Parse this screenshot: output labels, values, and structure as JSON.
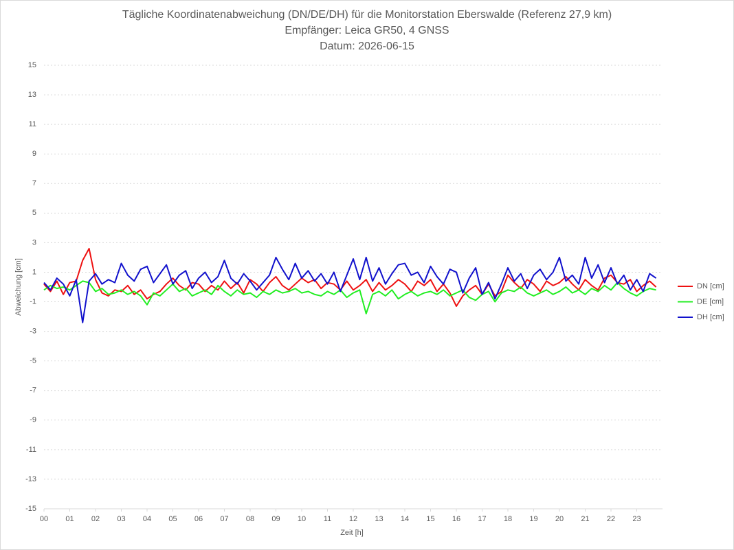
{
  "chart_data": {
    "type": "line",
    "title": "Tägliche Koordinatenabweichung (DN/DE/DH) für die Monitorstation Eberswalde (Referenz 27,9 km)",
    "subtitle": [
      "Empfänger: Leica GR50, 4 GNSS",
      "Datum: 2026-06-15"
    ],
    "x_label": "Zeit [h]",
    "y_label": "Abweichung [cm]",
    "legend": "right",
    "grid": true,
    "xlim": [
      0,
      24
    ],
    "ylim": [
      -15,
      15
    ],
    "yticks": [
      -15,
      -13,
      -11,
      -9,
      -7,
      -5,
      -3,
      -1,
      1,
      3,
      5,
      7,
      9,
      11,
      13,
      15
    ],
    "xticks": [
      {
        "value": 0,
        "label": "00"
      },
      {
        "value": 1,
        "label": "01"
      },
      {
        "value": 2,
        "label": "02"
      },
      {
        "value": 3,
        "label": "03"
      },
      {
        "value": 4,
        "label": "04"
      },
      {
        "value": 5,
        "label": "05"
      },
      {
        "value": 6,
        "label": "06"
      },
      {
        "value": 7,
        "label": "07"
      },
      {
        "value": 8,
        "label": "08"
      },
      {
        "value": 9,
        "label": "09"
      },
      {
        "value": 10,
        "label": "10"
      },
      {
        "value": 11,
        "label": "11"
      },
      {
        "value": 12,
        "label": "12"
      },
      {
        "value": 13,
        "label": "13"
      },
      {
        "value": 14,
        "label": "14"
      },
      {
        "value": 15,
        "label": "15"
      },
      {
        "value": 16,
        "label": "16"
      },
      {
        "value": 17,
        "label": "17"
      },
      {
        "value": 18,
        "label": "18"
      },
      {
        "value": 19,
        "label": "19"
      },
      {
        "value": 20,
        "label": "20"
      },
      {
        "value": 21,
        "label": "21"
      },
      {
        "value": 22,
        "label": "22"
      },
      {
        "value": 23,
        "label": "23"
      }
    ],
    "x": [
      0,
      0.25,
      0.5,
      0.75,
      1,
      1.25,
      1.5,
      1.75,
      2,
      2.25,
      2.5,
      2.75,
      3,
      3.25,
      3.5,
      3.75,
      4,
      4.25,
      4.5,
      4.75,
      5,
      5.25,
      5.5,
      5.75,
      6,
      6.25,
      6.5,
      6.75,
      7,
      7.25,
      7.5,
      7.75,
      8,
      8.25,
      8.5,
      8.75,
      9,
      9.25,
      9.5,
      9.75,
      10,
      10.25,
      10.5,
      10.75,
      11,
      11.25,
      11.5,
      11.75,
      12,
      12.25,
      12.5,
      12.75,
      13,
      13.25,
      13.5,
      13.75,
      14,
      14.25,
      14.5,
      14.75,
      15,
      15.25,
      15.5,
      15.75,
      16,
      16.25,
      16.5,
      16.75,
      17,
      17.25,
      17.5,
      17.75,
      18,
      18.25,
      18.5,
      18.75,
      19,
      19.25,
      19.5,
      19.75,
      20,
      20.25,
      20.5,
      20.75,
      21,
      21.25,
      21.5,
      21.75,
      22,
      22.25,
      22.5,
      22.75,
      23,
      23.25,
      23.5,
      23.75
    ],
    "series": [
      {
        "name": "DN [cm]",
        "color": "#ee1111",
        "values": [
          0.2,
          -0.3,
          0.4,
          -0.5,
          0.3,
          0.4,
          1.8,
          2.6,
          0.5,
          -0.4,
          -0.6,
          -0.2,
          -0.3,
          0.1,
          -0.5,
          -0.2,
          -0.8,
          -0.5,
          -0.3,
          0.2,
          0.6,
          0.1,
          -0.2,
          0.3,
          0.2,
          -0.3,
          0.1,
          -0.2,
          0.4,
          -0.1,
          0.3,
          -0.4,
          0.5,
          0.2,
          -0.3,
          0.3,
          0.7,
          0.1,
          -0.2,
          0.2,
          0.6,
          0.3,
          0.5,
          -0.1,
          0.3,
          0.2,
          -0.2,
          0.4,
          -0.2,
          0.1,
          0.5,
          -0.3,
          0.3,
          -0.2,
          0.1,
          0.5,
          0.2,
          -0.3,
          0.4,
          0.1,
          0.5,
          -0.3,
          0.2,
          -0.4,
          -1.3,
          -0.6,
          -0.2,
          0.1,
          -0.5,
          0.2,
          -0.6,
          -0.3,
          0.8,
          0.3,
          -0.1,
          0.5,
          0.2,
          -0.3,
          0.4,
          0.1,
          0.3,
          0.7,
          0.2,
          -0.2,
          0.5,
          0.1,
          -0.2,
          0.6,
          0.8,
          0.3,
          0.2,
          0.5,
          -0.3,
          0.1,
          0.4,
          0.0
        ]
      },
      {
        "name": "DE [cm]",
        "color": "#22ee22",
        "values": [
          -0.2,
          0.1,
          -0.1,
          0.0,
          -0.2,
          0.1,
          0.4,
          0.3,
          -0.3,
          -0.1,
          -0.5,
          -0.4,
          -0.2,
          -0.5,
          -0.3,
          -0.6,
          -1.2,
          -0.4,
          -0.6,
          -0.2,
          0.2,
          -0.3,
          -0.1,
          -0.6,
          -0.4,
          -0.2,
          -0.5,
          0.1,
          -0.3,
          -0.6,
          -0.2,
          -0.5,
          -0.4,
          -0.7,
          -0.3,
          -0.5,
          -0.2,
          -0.4,
          -0.3,
          -0.1,
          -0.4,
          -0.3,
          -0.5,
          -0.6,
          -0.3,
          -0.5,
          -0.2,
          -0.7,
          -0.4,
          -0.2,
          -1.8,
          -0.5,
          -0.3,
          -0.6,
          -0.2,
          -0.8,
          -0.5,
          -0.3,
          -0.6,
          -0.4,
          -0.3,
          -0.5,
          -0.2,
          -0.6,
          -0.4,
          -0.2,
          -0.7,
          -0.9,
          -0.5,
          -0.3,
          -1.0,
          -0.4,
          -0.2,
          -0.3,
          0.0,
          -0.4,
          -0.6,
          -0.4,
          -0.2,
          -0.5,
          -0.3,
          0.0,
          -0.4,
          -0.2,
          -0.5,
          -0.1,
          -0.3,
          0.1,
          -0.2,
          0.3,
          -0.1,
          -0.4,
          -0.6,
          -0.3,
          -0.1,
          -0.2
        ]
      },
      {
        "name": "DH [cm]",
        "color": "#1111cc",
        "values": [
          0.3,
          -0.2,
          0.6,
          0.2,
          -0.6,
          0.5,
          -2.4,
          0.4,
          0.9,
          0.2,
          0.5,
          0.3,
          1.6,
          0.8,
          0.4,
          1.2,
          1.4,
          0.3,
          0.9,
          1.5,
          0.2,
          0.8,
          1.1,
          -0.1,
          0.6,
          1.0,
          0.3,
          0.7,
          1.8,
          0.6,
          0.2,
          0.9,
          0.4,
          -0.2,
          0.3,
          0.8,
          2.0,
          1.2,
          0.5,
          1.6,
          0.6,
          1.1,
          0.4,
          0.9,
          0.2,
          1.0,
          -0.3,
          0.8,
          1.9,
          0.5,
          2.0,
          0.4,
          1.3,
          0.2,
          0.9,
          1.5,
          1.6,
          0.8,
          1.0,
          0.3,
          1.4,
          0.7,
          0.2,
          1.2,
          1.0,
          -0.4,
          0.6,
          1.3,
          -0.5,
          0.3,
          -0.8,
          0.2,
          1.3,
          0.4,
          0.9,
          -0.1,
          0.8,
          1.2,
          0.5,
          1.0,
          2.0,
          0.4,
          0.8,
          0.2,
          2.0,
          0.6,
          1.5,
          0.3,
          1.3,
          0.2,
          0.8,
          -0.2,
          0.5,
          -0.3,
          0.9,
          0.6
        ]
      }
    ]
  }
}
